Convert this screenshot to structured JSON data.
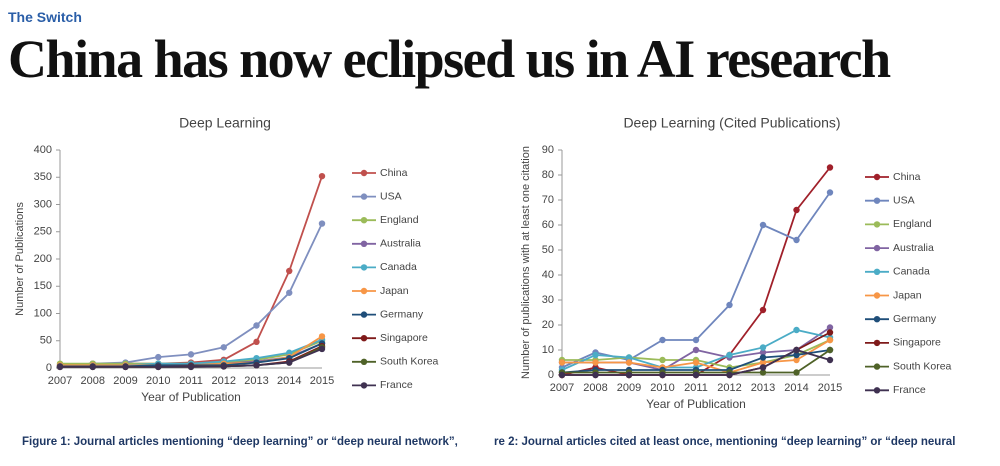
{
  "section": "The Switch",
  "headline": "China has now eclipsed us in AI research",
  "chart_data": [
    {
      "type": "line",
      "title": "Deep Learning",
      "x_label": "Year of Publication",
      "y_label": "Number of Publications",
      "caption": "Figure 1: Journal articles mentioning “deep learning” or “deep neural network”,",
      "categories": [
        "2007",
        "2008",
        "2009",
        "2010",
        "2011",
        "2012",
        "2013",
        "2014",
        "2015"
      ],
      "ylim": [
        0,
        400
      ],
      "yticks": [
        0,
        50,
        100,
        150,
        200,
        250,
        300,
        350,
        400
      ],
      "grid": false,
      "legend": "right",
      "series": [
        {
          "name": "China",
          "color": "#c0504d",
          "values": [
            5,
            8,
            8,
            8,
            10,
            15,
            48,
            178,
            352
          ]
        },
        {
          "name": "USA",
          "color": "#7f8fbf",
          "values": [
            5,
            8,
            10,
            20,
            25,
            38,
            78,
            138,
            265
          ]
        },
        {
          "name": "England",
          "color": "#9bbb59",
          "values": [
            8,
            8,
            8,
            8,
            8,
            10,
            15,
            25,
            50
          ]
        },
        {
          "name": "Australia",
          "color": "#8064a2",
          "values": [
            3,
            3,
            5,
            5,
            5,
            8,
            12,
            20,
            45
          ]
        },
        {
          "name": "Canada",
          "color": "#4bacc6",
          "values": [
            3,
            5,
            5,
            8,
            8,
            12,
            18,
            28,
            52
          ]
        },
        {
          "name": "Japan",
          "color": "#f79646",
          "values": [
            5,
            5,
            5,
            5,
            5,
            8,
            10,
            20,
            58
          ]
        },
        {
          "name": "Germany",
          "color": "#1f4e79",
          "values": [
            3,
            3,
            3,
            5,
            5,
            5,
            10,
            18,
            45
          ]
        },
        {
          "name": "Singapore",
          "color": "#7f1a1a",
          "values": [
            2,
            2,
            2,
            2,
            3,
            3,
            5,
            12,
            40
          ]
        },
        {
          "name": "South Korea",
          "color": "#4f6228",
          "values": [
            2,
            2,
            2,
            2,
            2,
            3,
            5,
            10,
            38
          ]
        },
        {
          "name": "France",
          "color": "#3f3151",
          "values": [
            2,
            2,
            2,
            2,
            2,
            3,
            5,
            10,
            35
          ]
        }
      ]
    },
    {
      "type": "line",
      "title": "Deep Learning (Cited Publications)",
      "x_label": "Year of Publication",
      "y_label": "Number of publications with at least one citation",
      "caption": "re 2: Journal articles cited at least once, mentioning “deep learning” or “deep neural",
      "categories": [
        "2007",
        "2008",
        "2009",
        "2010",
        "2011",
        "2012",
        "2013",
        "2014",
        "2015"
      ],
      "ylim": [
        0,
        90
      ],
      "yticks": [
        0,
        10,
        20,
        30,
        40,
        50,
        60,
        70,
        80,
        90
      ],
      "grid": false,
      "legend": "right",
      "series": [
        {
          "name": "China",
          "color": "#a0202a",
          "values": [
            0,
            3,
            0,
            0,
            0,
            8,
            26,
            66,
            83
          ]
        },
        {
          "name": "USA",
          "color": "#6f86bd",
          "values": [
            3,
            9,
            6,
            14,
            14,
            28,
            60,
            54,
            73
          ]
        },
        {
          "name": "England",
          "color": "#9bbb59",
          "values": [
            6,
            6,
            7,
            6,
            6,
            3,
            5,
            8,
            14
          ]
        },
        {
          "name": "Australia",
          "color": "#8064a2",
          "values": [
            5,
            5,
            5,
            2,
            10,
            7,
            9,
            10,
            19
          ]
        },
        {
          "name": "Canada",
          "color": "#4bacc6",
          "values": [
            2,
            8,
            7,
            3,
            3,
            8,
            11,
            18,
            15
          ]
        },
        {
          "name": "Japan",
          "color": "#f79646",
          "values": [
            5,
            5,
            5,
            3,
            5,
            1,
            5,
            6,
            14
          ]
        },
        {
          "name": "Germany",
          "color": "#1f4e79",
          "values": [
            1,
            2,
            2,
            2,
            2,
            2,
            7,
            8,
            10
          ]
        },
        {
          "name": "Singapore",
          "color": "#7f1a1a",
          "values": [
            0,
            0,
            0,
            0,
            0,
            0,
            3,
            10,
            17
          ]
        },
        {
          "name": "South Korea",
          "color": "#4f6228",
          "values": [
            1,
            1,
            1,
            1,
            1,
            1,
            1,
            1,
            10
          ]
        },
        {
          "name": "France",
          "color": "#3f3151",
          "values": [
            0,
            0,
            0,
            0,
            0,
            0,
            3,
            10,
            6
          ]
        }
      ]
    }
  ]
}
